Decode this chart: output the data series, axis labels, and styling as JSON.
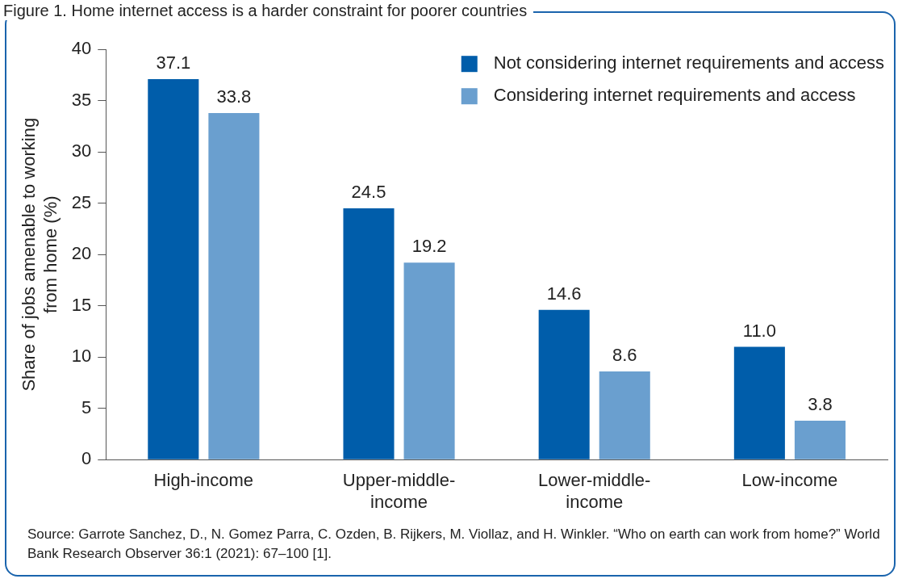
{
  "chart_data": {
    "type": "bar",
    "title": "Figure 1. Home internet access is a harder constraint for poorer countries",
    "ylabel": "Share of jobs amenable to working from home (%)",
    "categories": [
      "High-income",
      "Upper-middle-income",
      "Lower-middle-income",
      "Low-income"
    ],
    "series": [
      {
        "name": "Not considering internet requirements and access",
        "color": "#005daa",
        "values": [
          37.1,
          24.5,
          14.6,
          11.0
        ],
        "value_labels": [
          "37.1",
          "24.5",
          "14.6",
          "11.0"
        ]
      },
      {
        "name": "Considering internet requirements and access",
        "color": "#6a9fcf",
        "values": [
          33.8,
          19.2,
          8.6,
          3.8
        ],
        "value_labels": [
          "33.8",
          "19.2",
          "8.6",
          "3.8"
        ]
      }
    ],
    "ylim": [
      0,
      40
    ],
    "yticks": [
      0,
      5,
      10,
      15,
      20,
      25,
      30,
      35,
      40
    ],
    "grid": false,
    "legend": "top right",
    "annotations": [
      "Source: Garrote Sanchez, D., N. Gomez Parra, C. Ozden, B. Rijkers, M. Viollaz, and H. Winkler. “Who on earth can work from home?” World Bank Research Observer 36:1 (2021): 67–100 [1]."
    ]
  }
}
